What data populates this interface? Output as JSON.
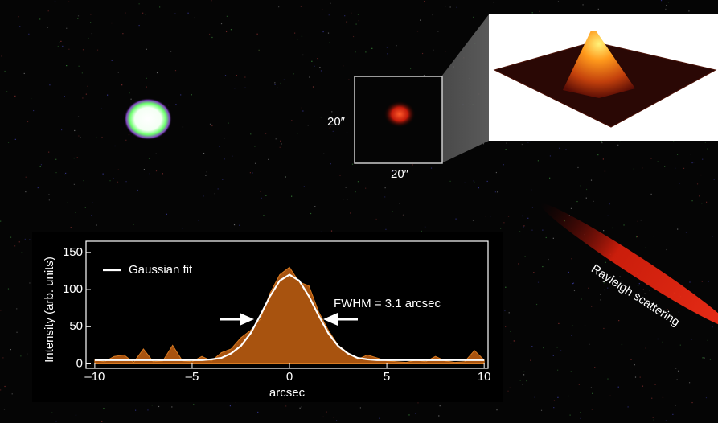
{
  "labels": {
    "scale_y": "20″",
    "scale_x": "20″",
    "streak": "Rayleigh scattering"
  },
  "chart_data": {
    "type": "area",
    "x_label": "arcsec",
    "y_label": "Intensity (arb. units)",
    "annotations": [
      "FWHM = 3.1 arcsec"
    ],
    "x": [
      -10,
      -9.5,
      -9,
      -8.5,
      -8,
      -7.5,
      -7,
      -6.5,
      -6,
      -5.5,
      -5,
      -4.5,
      -4,
      -3.5,
      -3,
      -2.5,
      -2,
      -1.5,
      -1,
      -0.5,
      0,
      0.5,
      1,
      1.5,
      2,
      2.5,
      3,
      3.5,
      4,
      4.5,
      5,
      5.5,
      6,
      6.5,
      7,
      7.5,
      8,
      8.5,
      9,
      9.5,
      10
    ],
    "series": [
      {
        "type": "area",
        "color": "#a8530f",
        "values": [
          5,
          3,
          10,
          12,
          2,
          20,
          3,
          4,
          25,
          4,
          3,
          10,
          4,
          15,
          20,
          35,
          45,
          60,
          95,
          120,
          130,
          110,
          105,
          70,
          45,
          25,
          15,
          6,
          12,
          8,
          4,
          3,
          2,
          5,
          3,
          10,
          4,
          2,
          3,
          18,
          5
        ]
      },
      {
        "type": "line",
        "name": "Gaussian fit",
        "color": "#ffffff",
        "values": [
          5,
          5,
          5,
          5,
          5,
          5,
          5,
          5,
          5,
          5,
          5,
          5,
          6,
          8,
          14,
          24,
          41,
          65,
          91,
          112,
          120,
          112,
          91,
          65,
          41,
          24,
          14,
          8,
          6,
          5,
          5,
          5,
          5,
          5,
          5,
          5,
          5,
          5,
          5,
          5,
          5
        ]
      }
    ],
    "xlim": [
      -10.45,
      10.2
    ],
    "ylim": [
      -6,
      165
    ],
    "xticks": [
      {
        "value": -10,
        "label": "–10"
      },
      {
        "value": -5,
        "label": "–5"
      },
      0,
      5,
      10
    ],
    "yticks": [
      0,
      50,
      100,
      150
    ]
  }
}
